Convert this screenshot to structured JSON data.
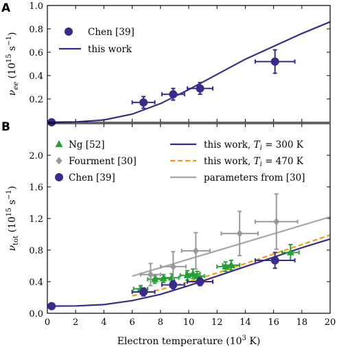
{
  "chart_data": [
    {
      "panel": "A",
      "type": "scatter",
      "ylabel_symbol": "ν",
      "ylabel_sub": "ee",
      "ylabel_unit_pre": " (10",
      "ylabel_unit_exp": "15",
      "ylabel_unit_post": " s",
      "ylabel_unit_exp2": "−1",
      "ylabel_unit_end": ")",
      "xlim": [
        0,
        20
      ],
      "ylim": [
        0,
        1.0
      ],
      "yticks": [
        0.2,
        0.4,
        0.6,
        0.8,
        1.0
      ],
      "ytick_labels": [
        "0.2",
        "0.4",
        "0.6",
        "0.8",
        "1.0"
      ],
      "legend_position": "top-left",
      "series": [
        {
          "name": "Chen [39]",
          "kind": "points",
          "marker": "circle",
          "color": "#3c2a8a",
          "points": [
            {
              "x": 0.3,
              "y": 0.0,
              "xerr": 0,
              "yerr": 0
            },
            {
              "x": 6.8,
              "y": 0.17,
              "xerr": 0.8,
              "yerr": 0.05
            },
            {
              "x": 8.9,
              "y": 0.24,
              "xerr": 0.8,
              "yerr": 0.05
            },
            {
              "x": 10.8,
              "y": 0.29,
              "xerr": 0.9,
              "yerr": 0.05
            },
            {
              "x": 16.1,
              "y": 0.52,
              "xerr": 1.4,
              "yerr": 0.1
            }
          ]
        },
        {
          "name": "this work",
          "kind": "line",
          "color": "#3c2a8a",
          "x": [
            0,
            2,
            4,
            6,
            8,
            10,
            12,
            14,
            16,
            18,
            20
          ],
          "y": [
            0.0,
            0.003,
            0.02,
            0.07,
            0.16,
            0.28,
            0.41,
            0.54,
            0.65,
            0.76,
            0.86
          ]
        }
      ]
    },
    {
      "panel": "B",
      "type": "scatter",
      "xlabel": "Electron temperature (10",
      "xlabel_exp": "3",
      "xlabel_end": " K)",
      "ylabel_symbol": "ν",
      "ylabel_sub": "tot",
      "ylabel_unit_pre": " (10",
      "ylabel_unit_exp": "15",
      "ylabel_unit_post": " s",
      "ylabel_unit_exp2": "−1",
      "ylabel_unit_end": ")",
      "xlim": [
        0,
        20
      ],
      "ylim": [
        0,
        2.4
      ],
      "xticks": [
        0,
        2,
        4,
        6,
        8,
        10,
        12,
        14,
        16,
        18,
        20
      ],
      "xtick_labels": [
        "0",
        "2",
        "4",
        "6",
        "8",
        "10",
        "12",
        "14",
        "16",
        "18",
        "20"
      ],
      "yticks": [
        0.0,
        0.4,
        0.8,
        1.2,
        1.6,
        2.0
      ],
      "ytick_labels": [
        "0.0",
        "0.4",
        "0.8",
        "1.2",
        "1.6",
        "2.0"
      ],
      "legend_position": "top",
      "series": [
        {
          "name": "Ng [52]",
          "kind": "points",
          "marker": "triangle",
          "color": "#22a134",
          "points": [
            {
              "x": 6.6,
              "y": 0.31,
              "xerr": 0.5,
              "yerr": 0.04
            },
            {
              "x": 7.6,
              "y": 0.43,
              "xerr": 0.5,
              "yerr": 0.05
            },
            {
              "x": 8.2,
              "y": 0.44,
              "xerr": 0.5,
              "yerr": 0.05
            },
            {
              "x": 8.8,
              "y": 0.45,
              "xerr": 0.5,
              "yerr": 0.05
            },
            {
              "x": 9.9,
              "y": 0.48,
              "xerr": 0.5,
              "yerr": 0.06
            },
            {
              "x": 10.3,
              "y": 0.5,
              "xerr": 0.5,
              "yerr": 0.06
            },
            {
              "x": 10.6,
              "y": 0.47,
              "xerr": 0.5,
              "yerr": 0.06
            },
            {
              "x": 12.6,
              "y": 0.59,
              "xerr": 0.6,
              "yerr": 0.06
            },
            {
              "x": 13.0,
              "y": 0.61,
              "xerr": 0.6,
              "yerr": 0.06
            },
            {
              "x": 17.2,
              "y": 0.77,
              "xerr": 0.6,
              "yerr": 0.1
            }
          ]
        },
        {
          "name": "Fourment [30]",
          "kind": "points",
          "marker": "diamond",
          "color": "#999999",
          "points": [
            {
              "x": 7.3,
              "y": 0.49,
              "xerr": 0.7,
              "yerr": 0.14
            },
            {
              "x": 8.9,
              "y": 0.59,
              "xerr": 0.9,
              "yerr": 0.19
            },
            {
              "x": 10.5,
              "y": 0.79,
              "xerr": 1.0,
              "yerr": 0.23
            },
            {
              "x": 13.6,
              "y": 1.01,
              "xerr": 1.3,
              "yerr": 0.28
            },
            {
              "x": 16.2,
              "y": 1.16,
              "xerr": 1.5,
              "yerr": 0.35
            }
          ]
        },
        {
          "name": "Chen [39]",
          "kind": "points",
          "marker": "circle",
          "color": "#3c2a8a",
          "points": [
            {
              "x": 0.3,
              "y": 0.09,
              "xerr": 0,
              "yerr": 0
            },
            {
              "x": 6.8,
              "y": 0.27,
              "xerr": 0.8,
              "yerr": 0.05
            },
            {
              "x": 8.9,
              "y": 0.36,
              "xerr": 0.8,
              "yerr": 0.05
            },
            {
              "x": 10.8,
              "y": 0.4,
              "xerr": 0.9,
              "yerr": 0.05
            },
            {
              "x": 16.1,
              "y": 0.67,
              "xerr": 1.4,
              "yerr": 0.1
            }
          ]
        },
        {
          "name": "this work, T",
          "name_sub": "i",
          "name_rest": " = 300 K",
          "kind": "line",
          "style": "solid",
          "color": "#3c2a8a",
          "x": [
            0,
            2,
            4,
            6,
            8,
            10,
            12,
            14,
            16,
            18,
            20
          ],
          "y": [
            0.09,
            0.093,
            0.11,
            0.16,
            0.24,
            0.35,
            0.47,
            0.59,
            0.71,
            0.83,
            0.94
          ]
        },
        {
          "name": "this work, T",
          "name_sub": "i",
          "name_rest": " = 470 K",
          "kind": "line",
          "style": "dashed",
          "color": "#f39c12",
          "x": [
            6,
            8,
            10,
            12,
            14,
            16,
            18,
            20
          ],
          "y": [
            0.22,
            0.3,
            0.4,
            0.51,
            0.63,
            0.75,
            0.87,
            0.99
          ]
        },
        {
          "name": "parameters from [30]",
          "kind": "line",
          "style": "solid",
          "color": "#a6a6a6",
          "x": [
            6,
            20
          ],
          "y": [
            0.47,
            1.22
          ]
        }
      ]
    }
  ]
}
